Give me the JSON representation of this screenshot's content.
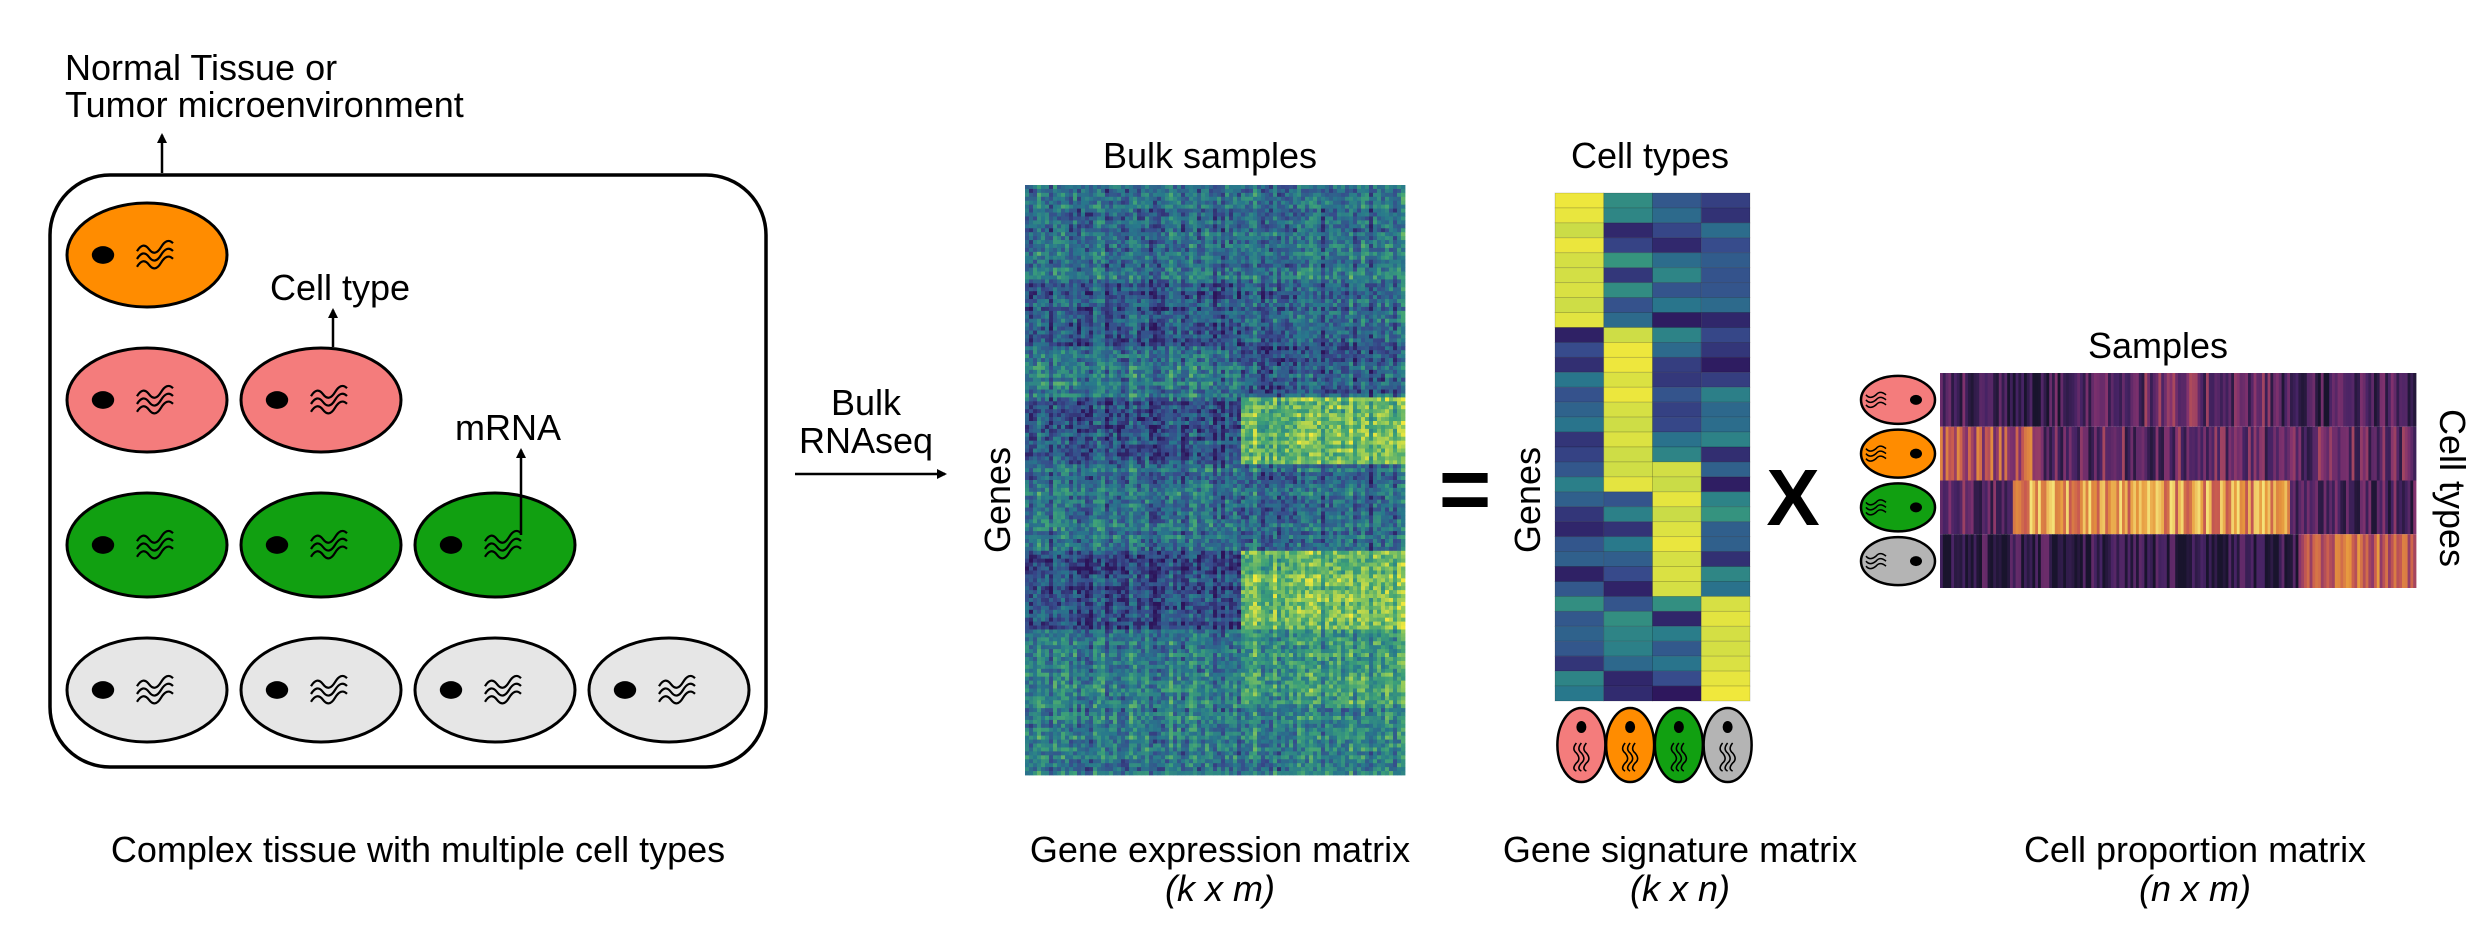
{
  "tissue": {
    "top_label_line1": "Normal Tissue or",
    "top_label_line2": "Tumor microenvironment",
    "cell_type_label": "Cell type",
    "mrna_label": "mRNA",
    "caption": "Complex tissue with multiple cell types"
  },
  "arrow": {
    "label_line1": "Bulk",
    "label_line2": "RNAseq"
  },
  "gene_expression": {
    "top_label": "Bulk samples",
    "side_label": "Genes",
    "caption_line1": "Gene expression matrix",
    "caption_line2": "(k x m)"
  },
  "operators": {
    "equals": "=",
    "times": "X"
  },
  "gene_signature": {
    "top_label": "Cell types",
    "side_label": "Genes",
    "caption_line1": "Gene signature matrix",
    "caption_line2": "(k x n)"
  },
  "cell_proportion": {
    "top_label": "Samples",
    "side_label": "Cell types",
    "caption_line1": "Cell proportion matrix",
    "caption_line2": "(n x m)"
  },
  "colors": {
    "orange": "#ff8c00",
    "salmon": "#f47c7c",
    "green": "#11a011",
    "light_gray": "#e6e6e6",
    "gray": "#b4b4b4",
    "viridis_yellow": "#f2e83a",
    "viridis_purple": "#2f1a5a"
  }
}
